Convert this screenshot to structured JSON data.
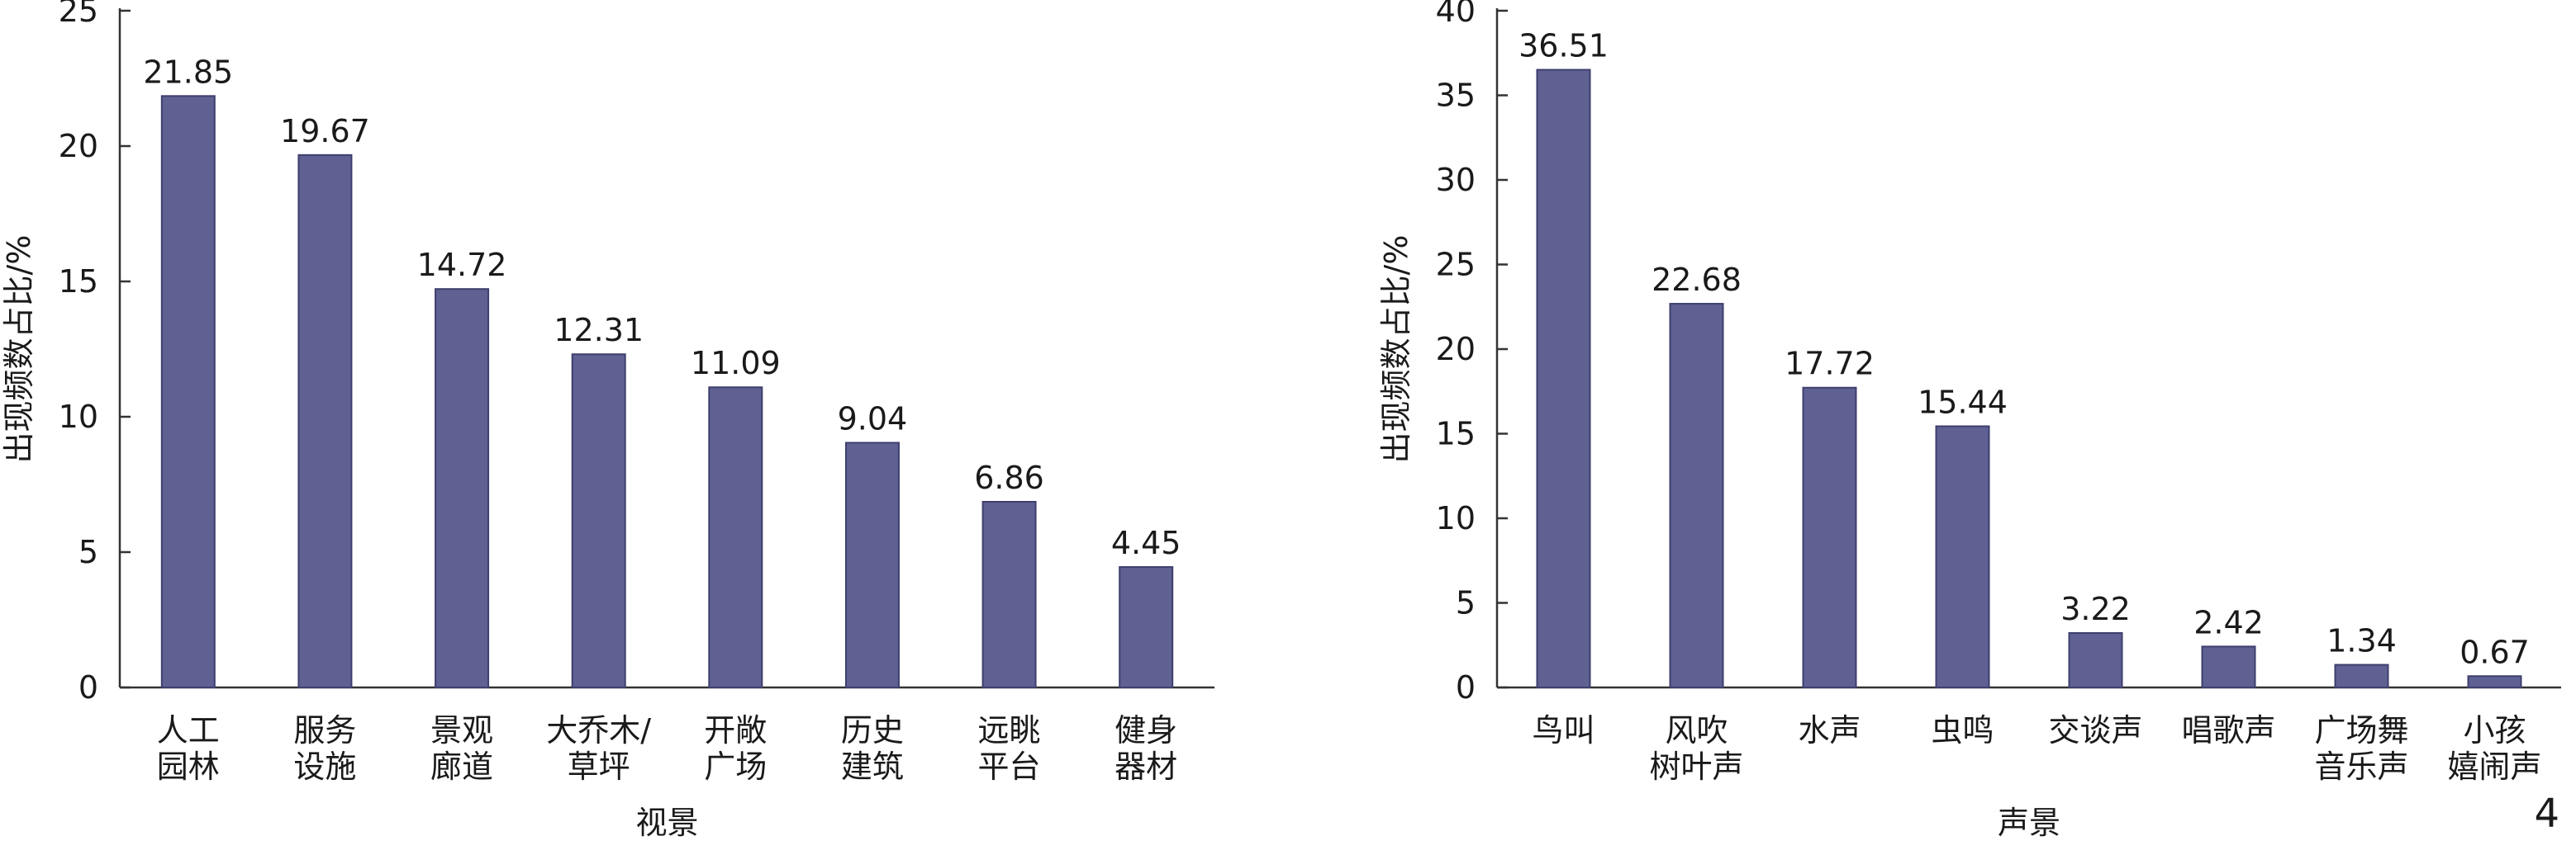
{
  "page_number": "4",
  "chart_data": [
    {
      "type": "bar",
      "categories": [
        [
          "人工",
          "园林"
        ],
        [
          "服务",
          "设施"
        ],
        [
          "景观",
          "廊道"
        ],
        [
          "大乔木/",
          "草坪"
        ],
        [
          "开敞",
          "广场"
        ],
        [
          "历史",
          "建筑"
        ],
        [
          "远眺",
          "平台"
        ],
        [
          "健身",
          "器材"
        ]
      ],
      "values": [
        21.85,
        19.67,
        14.72,
        12.31,
        11.09,
        9.04,
        6.86,
        4.45
      ],
      "value_labels": [
        "21.85",
        "19.67",
        "14.72",
        "12.31",
        "11.09",
        "9.04",
        "6.86",
        "4.45"
      ],
      "xlabel": "视景",
      "ylabel": "出现频数占比/%",
      "ylim": [
        0,
        25
      ],
      "yticks": [
        0,
        5,
        10,
        15,
        20,
        25
      ],
      "bar_color": "#5f6193",
      "grid": false
    },
    {
      "type": "bar",
      "categories": [
        [
          "鸟叫"
        ],
        [
          "风吹",
          "树叶声"
        ],
        [
          "水声"
        ],
        [
          "虫鸣"
        ],
        [
          "交谈声"
        ],
        [
          "唱歌声"
        ],
        [
          "广场舞",
          "音乐声"
        ],
        [
          "小孩",
          "嬉闹声"
        ]
      ],
      "values": [
        36.51,
        22.68,
        17.72,
        15.44,
        3.22,
        2.42,
        1.34,
        0.67
      ],
      "value_labels": [
        "36.51",
        "22.68",
        "17.72",
        "15.44",
        "3.22",
        "2.42",
        "1.34",
        "0.67"
      ],
      "xlabel": "声景",
      "ylabel": "出现频数占比/%",
      "ylim": [
        0,
        40
      ],
      "yticks": [
        0,
        5,
        10,
        15,
        20,
        25,
        30,
        35,
        40
      ],
      "bar_color": "#5f6193",
      "grid": false
    }
  ]
}
